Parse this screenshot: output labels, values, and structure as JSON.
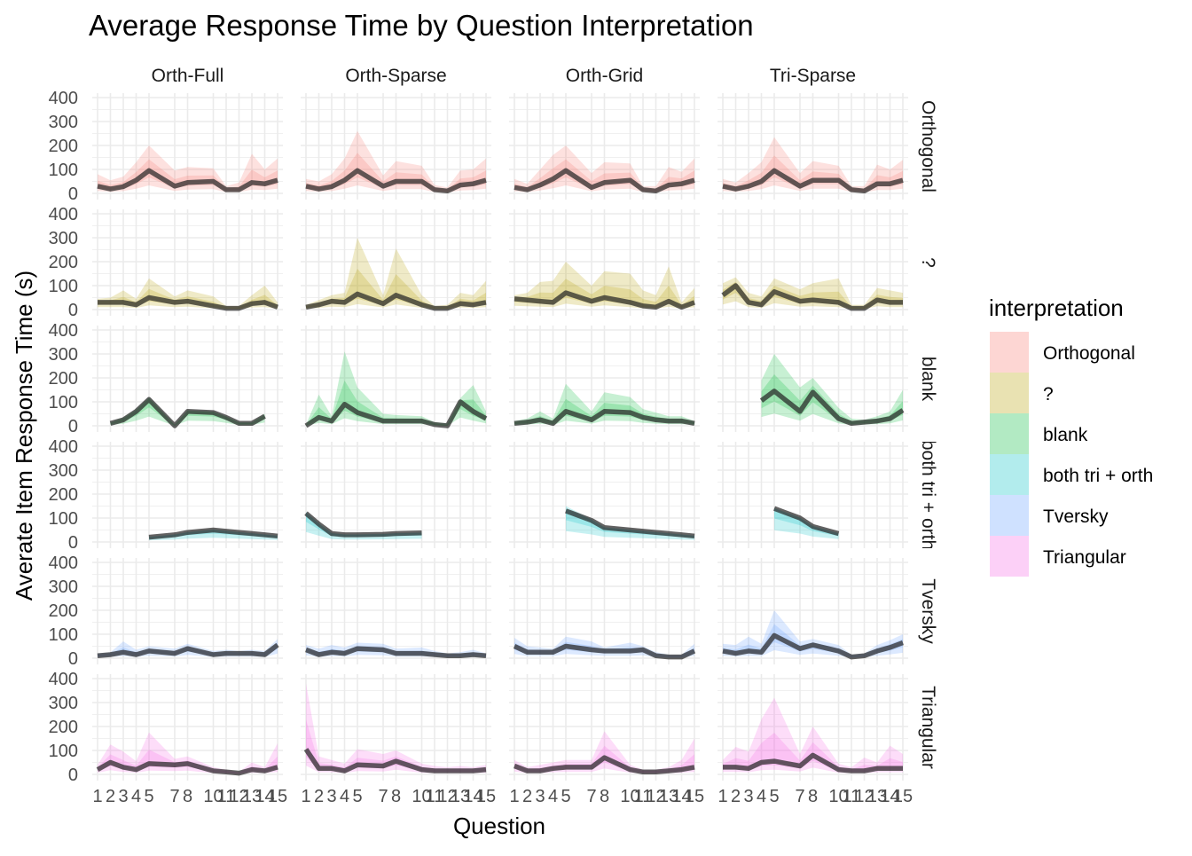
{
  "chart_data": {
    "type": "area",
    "title": "Average Response Time by Question Interpretation",
    "xlabel": "Question",
    "ylabel": "Averate Item Response Time (s)",
    "x": [
      1,
      2,
      3,
      4,
      5,
      7,
      8,
      10,
      11,
      12,
      13,
      14,
      15
    ],
    "x_tick_labels": [
      "1",
      "2",
      "3",
      "4",
      "5",
      "7",
      "8",
      "10",
      "11",
      "12",
      "13",
      "14",
      "15"
    ],
    "yticks": [
      0,
      100,
      200,
      300,
      400
    ],
    "ylim": [
      0,
      400
    ],
    "grid": true,
    "legend": {
      "title": "interpretation",
      "position": "right",
      "entries": [
        {
          "name": "Orthogonal",
          "color": "#F8766D"
        },
        {
          "name": "?",
          "color": "#B79F00"
        },
        {
          "name": "blank",
          "color": "#00BA38"
        },
        {
          "name": "both tri + orth",
          "color": "#00BFC4"
        },
        {
          "name": "Tversky",
          "color": "#619CFF"
        },
        {
          "name": "Triangular",
          "color": "#F564E3"
        }
      ]
    },
    "facet_columns": [
      "Orth-Full",
      "Orth-Sparse",
      "Orth-Grid",
      "Tri-Sparse"
    ],
    "facet_rows": [
      {
        "label": "Orthogonal",
        "color": "#F8766D"
      },
      {
        "label": "?",
        "color": "#B79F00"
      },
      {
        "label": "blank",
        "color": "#00BA38"
      },
      {
        "label": "both tri + orth",
        "color": "#00BFC4"
      },
      {
        "label": "Tversky",
        "color": "#619CFF"
      },
      {
        "label": "Triangular",
        "color": "#F564E3"
      }
    ],
    "panels": [
      [
        {
          "mean": [
            30,
            18,
            28,
            55,
            95,
            30,
            45,
            50,
            15,
            15,
            45,
            40,
            55
          ],
          "upper": [
            80,
            55,
            70,
            130,
            200,
            95,
            110,
            105,
            30,
            45,
            165,
            100,
            145
          ]
        },
        {
          "mean": [
            30,
            30,
            30,
            20,
            50,
            30,
            35,
            15,
            5,
            5,
            25,
            30,
            10
          ],
          "upper": [
            45,
            50,
            80,
            45,
            130,
            55,
            80,
            55,
            15,
            15,
            60,
            100,
            30
          ]
        },
        {
          "mean": [
            null,
            10,
            25,
            60,
            110,
            0,
            60,
            55,
            35,
            10,
            10,
            40,
            null
          ],
          "upper": [
            null,
            15,
            35,
            70,
            120,
            5,
            65,
            60,
            40,
            15,
            15,
            50,
            null
          ]
        },
        {
          "mean": [
            null,
            null,
            null,
            null,
            20,
            30,
            40,
            50,
            45,
            40,
            35,
            30,
            25
          ],
          "upper": [
            null,
            null,
            null,
            null,
            22,
            32,
            42,
            52,
            47,
            42,
            37,
            32,
            27
          ]
        },
        {
          "mean": [
            10,
            15,
            25,
            15,
            30,
            20,
            40,
            15,
            20,
            20,
            20,
            15,
            55
          ],
          "upper": [
            20,
            25,
            70,
            35,
            50,
            40,
            60,
            30,
            35,
            30,
            35,
            30,
            80
          ]
        },
        {
          "mean": [
            20,
            50,
            30,
            20,
            45,
            40,
            45,
            15,
            10,
            5,
            20,
            15,
            30
          ],
          "upper": [
            40,
            125,
            95,
            55,
            175,
            65,
            75,
            30,
            20,
            10,
            50,
            30,
            130
          ]
        }
      ],
      [
        {
          "mean": [
            30,
            18,
            28,
            55,
            95,
            30,
            50,
            50,
            15,
            10,
            35,
            40,
            55
          ],
          "upper": [
            60,
            50,
            80,
            145,
            260,
            75,
            135,
            115,
            35,
            25,
            95,
            100,
            145
          ]
        },
        {
          "mean": [
            10,
            20,
            35,
            30,
            65,
            25,
            60,
            20,
            5,
            5,
            25,
            20,
            30
          ],
          "upper": [
            20,
            40,
            60,
            70,
            300,
            60,
            255,
            60,
            15,
            20,
            70,
            60,
            120
          ]
        },
        {
          "mean": [
            0,
            35,
            20,
            90,
            55,
            20,
            20,
            20,
            5,
            0,
            100,
            60,
            30
          ],
          "upper": [
            5,
            130,
            40,
            310,
            160,
            50,
            45,
            40,
            15,
            10,
            115,
            170,
            60
          ]
        },
        {
          "mean": [
            120,
            75,
            35,
            30,
            30,
            32,
            35,
            38,
            null,
            null,
            null,
            null,
            null
          ],
          "upper": [
            125,
            78,
            38,
            32,
            32,
            34,
            37,
            40,
            null,
            null,
            null,
            null,
            null
          ]
        },
        {
          "mean": [
            35,
            15,
            25,
            20,
            40,
            35,
            20,
            20,
            15,
            10,
            10,
            15,
            10
          ],
          "upper": [
            55,
            40,
            55,
            45,
            65,
            60,
            40,
            45,
            30,
            20,
            25,
            35,
            20
          ]
        },
        {
          "mean": [
            105,
            25,
            25,
            15,
            40,
            35,
            55,
            20,
            15,
            15,
            15,
            15,
            20
          ],
          "upper": [
            380,
            75,
            60,
            45,
            105,
            85,
            100,
            45,
            35,
            30,
            35,
            30,
            40
          ]
        }
      ],
      [
        {
          "mean": [
            25,
            15,
            35,
            60,
            95,
            25,
            45,
            55,
            15,
            10,
            35,
            40,
            55
          ],
          "upper": [
            60,
            40,
            100,
            160,
            200,
            85,
            130,
            125,
            30,
            30,
            110,
            90,
            145
          ]
        },
        {
          "mean": [
            45,
            40,
            35,
            30,
            70,
            35,
            50,
            30,
            15,
            10,
            35,
            10,
            30
          ],
          "upper": [
            60,
            70,
            115,
            120,
            200,
            100,
            160,
            150,
            80,
            60,
            180,
            30,
            90
          ]
        },
        {
          "mean": [
            10,
            15,
            25,
            10,
            60,
            25,
            60,
            55,
            35,
            25,
            20,
            20,
            10
          ],
          "upper": [
            20,
            30,
            60,
            30,
            175,
            60,
            140,
            120,
            70,
            55,
            40,
            40,
            20
          ]
        },
        {
          "mean": [
            null,
            null,
            null,
            null,
            130,
            90,
            60,
            50,
            45,
            40,
            35,
            30,
            25
          ],
          "upper": [
            null,
            null,
            null,
            null,
            150,
            95,
            62,
            52,
            47,
            42,
            37,
            32,
            27
          ]
        },
        {
          "mean": [
            50,
            25,
            25,
            25,
            50,
            35,
            30,
            30,
            35,
            10,
            5,
            5,
            30
          ],
          "upper": [
            85,
            50,
            45,
            40,
            90,
            70,
            45,
            65,
            50,
            25,
            15,
            15,
            60
          ]
        },
        {
          "mean": [
            35,
            15,
            15,
            25,
            30,
            30,
            70,
            20,
            10,
            10,
            15,
            20,
            30
          ],
          "upper": [
            60,
            30,
            40,
            50,
            60,
            60,
            180,
            40,
            20,
            20,
            30,
            60,
            150
          ]
        }
      ],
      [
        {
          "mean": [
            30,
            18,
            30,
            50,
            95,
            30,
            55,
            55,
            15,
            10,
            40,
            40,
            55
          ],
          "upper": [
            60,
            45,
            85,
            130,
            235,
            85,
            135,
            115,
            30,
            30,
            120,
            100,
            140
          ]
        },
        {
          "mean": [
            60,
            100,
            30,
            20,
            75,
            35,
            40,
            30,
            5,
            5,
            40,
            30,
            30
          ],
          "upper": [
            110,
            135,
            70,
            55,
            130,
            85,
            110,
            130,
            20,
            20,
            90,
            80,
            70
          ]
        },
        {
          "mean": [
            null,
            null,
            null,
            105,
            145,
            60,
            140,
            30,
            10,
            15,
            20,
            30,
            65
          ],
          "upper": [
            null,
            null,
            null,
            190,
            300,
            160,
            200,
            75,
            30,
            25,
            40,
            60,
            150
          ]
        },
        {
          "mean": [
            null,
            null,
            null,
            null,
            140,
            100,
            65,
            35,
            null,
            null,
            null,
            null,
            null
          ],
          "upper": [
            null,
            null,
            null,
            null,
            142,
            102,
            67,
            37,
            null,
            null,
            null,
            null,
            null
          ]
        },
        {
          "mean": [
            30,
            20,
            30,
            25,
            95,
            40,
            55,
            30,
            5,
            10,
            30,
            45,
            65
          ],
          "upper": [
            60,
            55,
            90,
            60,
            200,
            70,
            80,
            55,
            15,
            20,
            55,
            75,
            100
          ]
        },
        {
          "mean": [
            30,
            30,
            25,
            50,
            55,
            35,
            80,
            20,
            15,
            15,
            25,
            25,
            25
          ],
          "upper": [
            60,
            115,
            95,
            230,
            320,
            85,
            200,
            45,
            30,
            70,
            50,
            120,
            85
          ]
        }
      ]
    ]
  }
}
